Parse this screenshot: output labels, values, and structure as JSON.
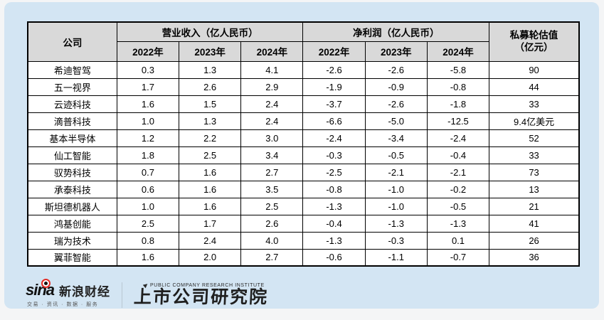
{
  "colors": {
    "card_background": "#d3e5f3",
    "header_background": "#d9d9d9",
    "table_background": "#ffffff",
    "border": "#000000",
    "sina_red": "#e32b25"
  },
  "chart_data": {
    "type": "table",
    "header": {
      "company": "公司",
      "revenue_group": "营业收入（亿人民币）",
      "profit_group": "净利润（亿人民币）",
      "valuation_line1": "私募轮估值",
      "valuation_line2": "（亿元）",
      "year_columns": [
        "2022年",
        "2023年",
        "2024年"
      ]
    },
    "rows": [
      {
        "company": "希迪智驾",
        "revenue": [
          "0.3",
          "1.3",
          "4.1"
        ],
        "profit": [
          "-2.6",
          "-2.6",
          "-5.8"
        ],
        "valuation": "90"
      },
      {
        "company": "五一视界",
        "revenue": [
          "1.7",
          "2.6",
          "2.9"
        ],
        "profit": [
          "-1.9",
          "-0.9",
          "-0.8"
        ],
        "valuation": "44"
      },
      {
        "company": "云迹科技",
        "revenue": [
          "1.6",
          "1.5",
          "2.4"
        ],
        "profit": [
          "-3.7",
          "-2.6",
          "-1.8"
        ],
        "valuation": "33"
      },
      {
        "company": "滴普科技",
        "revenue": [
          "1.0",
          "1.3",
          "2.4"
        ],
        "profit": [
          "-6.6",
          "-5.0",
          "-12.5"
        ],
        "valuation": "9.4亿美元"
      },
      {
        "company": "基本半导体",
        "revenue": [
          "1.2",
          "2.2",
          "3.0"
        ],
        "profit": [
          "-2.4",
          "-3.4",
          "-2.4"
        ],
        "valuation": "52"
      },
      {
        "company": "仙工智能",
        "revenue": [
          "1.8",
          "2.5",
          "3.4"
        ],
        "profit": [
          "-0.3",
          "-0.5",
          "-0.4"
        ],
        "valuation": "33"
      },
      {
        "company": "驭势科技",
        "revenue": [
          "0.7",
          "1.6",
          "2.7"
        ],
        "profit": [
          "-2.5",
          "-2.1",
          "-2.1"
        ],
        "valuation": "73"
      },
      {
        "company": "承泰科技",
        "revenue": [
          "0.6",
          "1.6",
          "3.5"
        ],
        "profit": [
          "-0.8",
          "-1.0",
          "-0.2"
        ],
        "valuation": "13"
      },
      {
        "company": "斯坦德机器人",
        "revenue": [
          "1.0",
          "1.6",
          "2.5"
        ],
        "profit": [
          "-1.3",
          "-1.0",
          "-0.5"
        ],
        "valuation": "21"
      },
      {
        "company": "鸿基创能",
        "revenue": [
          "2.5",
          "1.7",
          "2.6"
        ],
        "profit": [
          "-0.4",
          "-1.3",
          "-1.3"
        ],
        "valuation": "41"
      },
      {
        "company": "瑞为技术",
        "revenue": [
          "0.8",
          "2.4",
          "4.0"
        ],
        "profit": [
          "-1.3",
          "-0.3",
          "0.1"
        ],
        "valuation": "26"
      },
      {
        "company": "翼菲智能",
        "revenue": [
          "1.6",
          "2.0",
          "2.7"
        ],
        "profit": [
          "-0.6",
          "-1.1",
          "-0.7"
        ],
        "valuation": "36"
      }
    ]
  },
  "footer": {
    "sina_wordmark": "sina",
    "sina_brand": "新浪财经",
    "sina_tagline": "交易 · 资讯 · 数据 · 服务",
    "institute_en": "PUBLIC COMPANY RESEARCH INSTITUTE",
    "institute_cn": "上市公司研究院"
  }
}
